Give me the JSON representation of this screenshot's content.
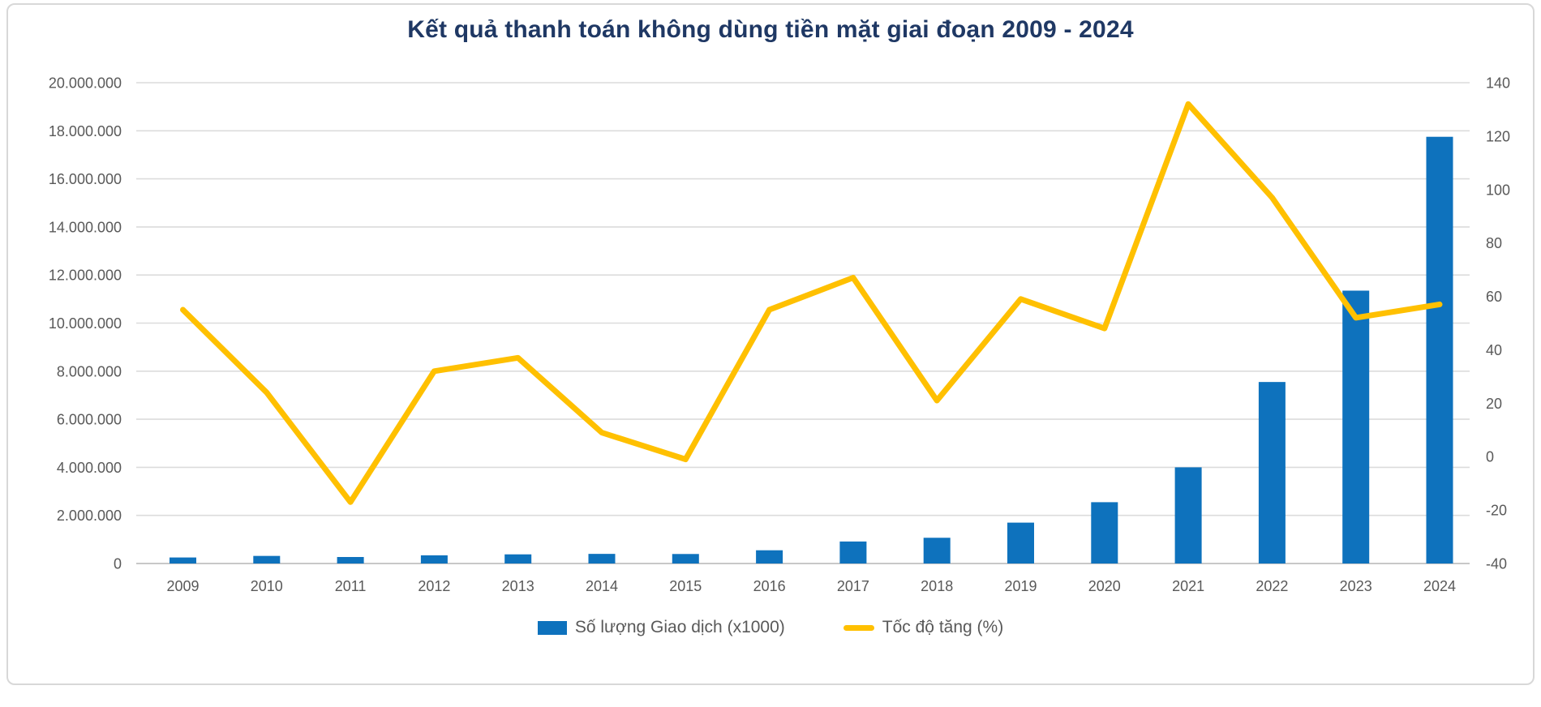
{
  "chart_data": {
    "type": "combo",
    "title": "Kết quả thanh toán không dùng tiền mặt giai đoạn 2009 - 2024",
    "categories": [
      "2009",
      "2010",
      "2011",
      "2012",
      "2013",
      "2014",
      "2015",
      "2016",
      "2017",
      "2018",
      "2019",
      "2020",
      "2021",
      "2022",
      "2023",
      "2024"
    ],
    "series": [
      {
        "name": "Số lượng Giao dịch (x1000)",
        "type": "bar",
        "axis": "left",
        "color": "#0e72bd",
        "values": [
          250000,
          315000,
          270000,
          340000,
          380000,
          400000,
          395000,
          550000,
          915000,
          1070000,
          1700000,
          2550000,
          4000000,
          7550000,
          11350000,
          17750000
        ]
      },
      {
        "name": "Tốc độ tăng (%)",
        "type": "line",
        "axis": "right",
        "color": "#ffc000",
        "values": [
          55,
          24,
          -17,
          32,
          37,
          9,
          -1,
          55,
          67,
          21,
          59,
          48,
          132,
          97,
          52,
          57
        ]
      }
    ],
    "left_axis": {
      "min": 0,
      "max": 20000000,
      "step": 2000000,
      "tick_labels": [
        "0",
        "2.000.000",
        "4.000.000",
        "6.000.000",
        "8.000.000",
        "10.000.000",
        "12.000.000",
        "14.000.000",
        "16.000.000",
        "18.000.000",
        "20.000.000"
      ]
    },
    "right_axis": {
      "min": -40,
      "max": 140,
      "step": 20,
      "tick_labels": [
        "-40",
        "-20",
        "0",
        "20",
        "40",
        "60",
        "80",
        "100",
        "120",
        "140"
      ]
    },
    "grid": "horizontal-on-left-ticks",
    "legend_position": "bottom",
    "colors": {
      "bar": "#0e72bd",
      "line": "#ffc000",
      "title": "#1f3864",
      "axis_text": "#595959",
      "gridline": "#dcdcdc",
      "baseline": "#c0c0c0",
      "frame_border": "#d8d8d8"
    }
  }
}
